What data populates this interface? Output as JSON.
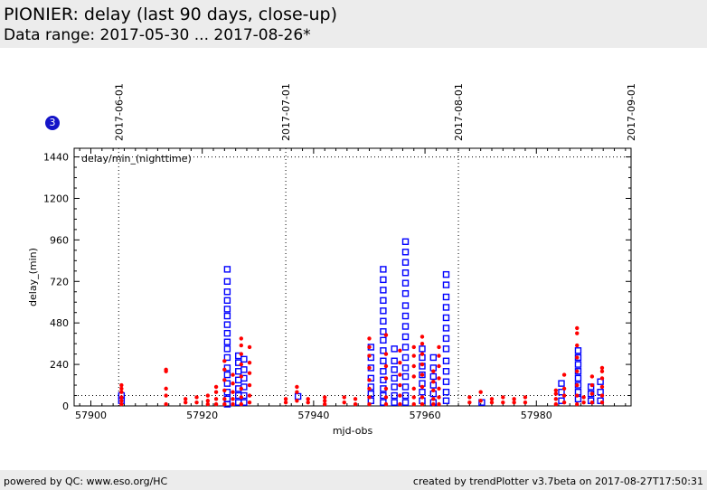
{
  "header": {
    "title": "PIONIER: delay (last 90 days, close-up)",
    "subtitle": "Data range: 2017-05-30 ... 2017-08-26*"
  },
  "badge": "3",
  "footer": {
    "left": "powered by QC: www.eso.org/HC",
    "right": "created by trendPlotter v3.7beta on 2017-08-27T17:50:31"
  },
  "colors": {
    "nighttime": "#ff0000",
    "daytime": "#0000ff",
    "reference": "#000000"
  },
  "chart_data": {
    "type": "scatter",
    "xlabel": "mjd-obs",
    "ylabel": "delay_(min)",
    "annotation": "delay/min_(nighttime)",
    "xlim": [
      57897,
      57997
    ],
    "ylim": [
      0,
      1490
    ],
    "x_ticks": [
      57900,
      57920,
      57940,
      57960,
      57980
    ],
    "y_ticks": [
      0,
      240,
      480,
      720,
      960,
      1200,
      1440
    ],
    "top_date_labels": [
      {
        "label": "2017-06-01",
        "x": 57905
      },
      {
        "label": "2017-07-01",
        "x": 57935
      },
      {
        "label": "2017-08-01",
        "x": 57966
      },
      {
        "label": "2017-09-01",
        "x": 57997
      }
    ],
    "reference_lines_y": [
      60,
      1440
    ],
    "series": [
      {
        "marker": "square",
        "color": "#0000ff",
        "columns": [
          {
            "x": 57905.5,
            "y": [
              30,
              60
            ]
          },
          {
            "x": 57924.5,
            "y": [
              10,
              40,
              80,
              130,
              180,
              220,
              280,
              330,
              370,
              420,
              470,
              520,
              560,
              610,
              660,
              720,
              790
            ]
          },
          {
            "x": 57926.5,
            "y": [
              20,
              60,
              100,
              150,
              200,
              250,
              290
            ]
          },
          {
            "x": 57927.5,
            "y": [
              20,
              60,
              110,
              160,
              210,
              270
            ]
          },
          {
            "x": 57937.2,
            "y": [
              55
            ]
          },
          {
            "x": 57950.3,
            "y": [
              30,
              70,
              110,
              160,
              220,
              280,
              340
            ]
          },
          {
            "x": 57952.5,
            "y": [
              20,
              60,
              100,
              150,
              200,
              260,
              320,
              380,
              430,
              490,
              550,
              610,
              670,
              730,
              790
            ]
          },
          {
            "x": 57954.5,
            "y": [
              20,
              60,
              110,
              160,
              210,
              260,
              330
            ]
          },
          {
            "x": 57956.5,
            "y": [
              20,
              60,
              110,
              170,
              220,
              280,
              340,
              400,
              460,
              520,
              580,
              650,
              710,
              770,
              830,
              890,
              950
            ]
          },
          {
            "x": 57959.5,
            "y": [
              30,
              80,
              130,
              180,
              230,
              280,
              330
            ]
          },
          {
            "x": 57961.5,
            "y": [
              20,
              70,
              120,
              170,
              220,
              280
            ]
          },
          {
            "x": 57963.8,
            "y": [
              30,
              80,
              140,
              200,
              260,
              330,
              390,
              450,
              510,
              570,
              630,
              700,
              760
            ]
          },
          {
            "x": 57970.2,
            "y": [
              20
            ]
          },
          {
            "x": 57984.5,
            "y": [
              30,
              80,
              130
            ]
          },
          {
            "x": 57987.5,
            "y": [
              40,
              80,
              120,
              160,
              200,
              240,
              280,
              320
            ]
          },
          {
            "x": 57989.8,
            "y": [
              30,
              70,
              110
            ]
          },
          {
            "x": 57991.5,
            "y": [
              30,
              80,
              140
            ]
          }
        ]
      },
      {
        "marker": "dot",
        "color": "#ff0000",
        "columns": [
          {
            "x": 57905.5,
            "y": [
              10,
              30,
              50,
              80,
              100,
              120
            ]
          },
          {
            "x": 57913.5,
            "y": [
              10,
              60,
              100,
              200,
              210
            ]
          },
          {
            "x": 57917.0,
            "y": [
              20,
              40
            ]
          },
          {
            "x": 57919.0,
            "y": [
              20,
              50
            ]
          },
          {
            "x": 57921.0,
            "y": [
              10,
              30,
              60
            ]
          },
          {
            "x": 57922.5,
            "y": [
              10,
              40,
              80,
              110
            ]
          },
          {
            "x": 57924.0,
            "y": [
              10,
              40,
              90,
              150,
              210,
              260
            ]
          },
          {
            "x": 57925.5,
            "y": [
              10,
              40,
              80,
              130,
              180
            ]
          },
          {
            "x": 57927.0,
            "y": [
              10,
              50,
              100,
              170,
              240,
              300,
              350,
              390
            ]
          },
          {
            "x": 57928.5,
            "y": [
              20,
              60,
              120,
              190,
              250,
              340
            ]
          },
          {
            "x": 57935.0,
            "y": [
              20,
              40
            ]
          },
          {
            "x": 57937.0,
            "y": [
              30,
              80,
              110
            ]
          },
          {
            "x": 57939.0,
            "y": [
              20,
              40
            ]
          },
          {
            "x": 57942.0,
            "y": [
              10,
              30,
              50
            ]
          },
          {
            "x": 57945.5,
            "y": [
              20,
              50
            ]
          },
          {
            "x": 57947.5,
            "y": [
              10,
              40
            ]
          },
          {
            "x": 57950.0,
            "y": [
              10,
              50,
              100,
              150,
              220,
              290,
              340,
              390
            ]
          },
          {
            "x": 57953.0,
            "y": [
              10,
              50,
              100,
              160,
              230,
              300,
              410
            ]
          },
          {
            "x": 57955.5,
            "y": [
              10,
              60,
              120,
              180,
              250,
              320
            ]
          },
          {
            "x": 57958.0,
            "y": [
              10,
              50,
              100,
              170,
              230,
              290,
              340
            ]
          },
          {
            "x": 57959.5,
            "y": [
              10,
              50,
              110,
              180,
              240,
              300,
              360,
              400
            ]
          },
          {
            "x": 57961.5,
            "y": [
              10,
              40,
              90,
              140,
              200
            ]
          },
          {
            "x": 57962.5,
            "y": [
              10,
              50,
              100,
              160,
              230,
              290,
              340
            ]
          },
          {
            "x": 57968.0,
            "y": [
              20,
              50
            ]
          },
          {
            "x": 57970.0,
            "y": [
              30,
              80
            ]
          },
          {
            "x": 57972.0,
            "y": [
              20,
              40
            ]
          },
          {
            "x": 57974.0,
            "y": [
              20,
              50
            ]
          },
          {
            "x": 57976.0,
            "y": [
              20,
              40
            ]
          },
          {
            "x": 57978.0,
            "y": [
              20,
              50
            ]
          },
          {
            "x": 57983.5,
            "y": [
              10,
              40,
              70,
              90
            ]
          },
          {
            "x": 57985.0,
            "y": [
              20,
              60,
              100,
              180
            ]
          },
          {
            "x": 57987.3,
            "y": [
              10,
              60,
              120,
              200,
              280,
              350,
              420,
              450
            ]
          },
          {
            "x": 57988.5,
            "y": [
              20,
              50
            ]
          },
          {
            "x": 57990.0,
            "y": [
              20,
              70,
              120,
              170
            ]
          },
          {
            "x": 57991.8,
            "y": [
              20,
              60,
              110,
              160,
              200,
              220
            ]
          }
        ]
      }
    ]
  }
}
